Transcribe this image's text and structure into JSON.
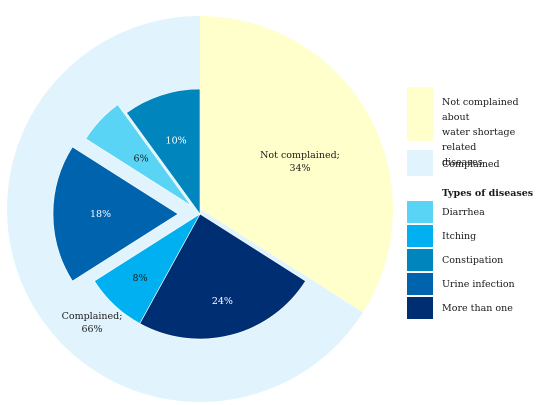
{
  "chart_data": {
    "type": "pie",
    "title": "",
    "slices": [
      {
        "label": "Not complained;",
        "value": 34,
        "value_label": "34%",
        "color": "#ffffcc"
      },
      {
        "label": "Complained;",
        "value": 66,
        "value_label": "66%",
        "color": "#e1f4fd"
      }
    ],
    "sub_slices": [
      {
        "name": "More than one",
        "value": 24,
        "value_label": "24%",
        "color": "#002e73"
      },
      {
        "name": "Itching",
        "value": 8,
        "value_label": "8%",
        "color": "#00b0f0"
      },
      {
        "name": "Urine infection",
        "value": 18,
        "value_label": "18%",
        "color": "#0063ae"
      },
      {
        "name": "Diarrhea",
        "value": 6,
        "value_label": "6%",
        "color": "#5ad4f5"
      },
      {
        "name": "Constipation",
        "value": 10,
        "value_label": "10%",
        "color": "#0085bd"
      }
    ],
    "legend": {
      "placement": "right",
      "main_entries": [
        {
          "label": "Not complained about water shortage related diseases",
          "lines": [
            "Not complained about",
            "water shortage related",
            "diseases"
          ],
          "color": "#ffffcc"
        },
        {
          "label": "Complained",
          "color": "#e1f4fd"
        }
      ],
      "disease_title": "Types of diseases",
      "disease_entries": [
        {
          "label": "Diarrhea",
          "color": "#5ad4f5"
        },
        {
          "label": "Itching",
          "color": "#00b0f0"
        },
        {
          "label": "Constipation",
          "color": "#0085bd"
        },
        {
          "label": "Urine infection",
          "color": "#0063ae"
        },
        {
          "label": "More than one",
          "color": "#002e73"
        }
      ]
    }
  }
}
